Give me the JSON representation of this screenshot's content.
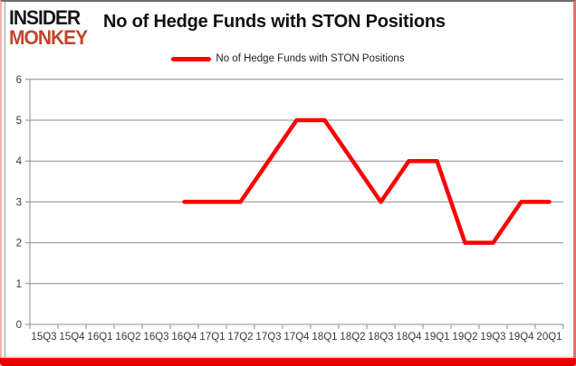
{
  "brand": {
    "line1": "INSIDER",
    "line2": "MONKEY",
    "accent_color": "#c0452e"
  },
  "title": "No of Hedge Funds with STON Positions",
  "legend": {
    "label": "No of Hedge Funds with STON Positions",
    "line_color": "#fe0000"
  },
  "chart_data": {
    "type": "line",
    "title": "No of Hedge Funds with STON Positions",
    "categories": [
      "15Q3",
      "15Q4",
      "16Q1",
      "16Q2",
      "16Q3",
      "16Q4",
      "17Q1",
      "17Q2",
      "17Q3",
      "17Q4",
      "18Q1",
      "18Q2",
      "18Q3",
      "18Q4",
      "19Q1",
      "19Q2",
      "19Q3",
      "19Q4",
      "20Q1"
    ],
    "series": [
      {
        "name": "No of Hedge Funds with STON Positions",
        "color": "#fe0000",
        "values": [
          null,
          null,
          null,
          null,
          null,
          3,
          3,
          3,
          4,
          5,
          5,
          4,
          3,
          4,
          4,
          2,
          2,
          3,
          3
        ]
      }
    ],
    "xlabel": "",
    "ylabel": "",
    "ylim": [
      0,
      6
    ],
    "yticks": [
      0,
      1,
      2,
      3,
      4,
      5,
      6
    ],
    "grid": true,
    "gridline_color": "#8e8e8e",
    "legend_position": "top-center"
  }
}
